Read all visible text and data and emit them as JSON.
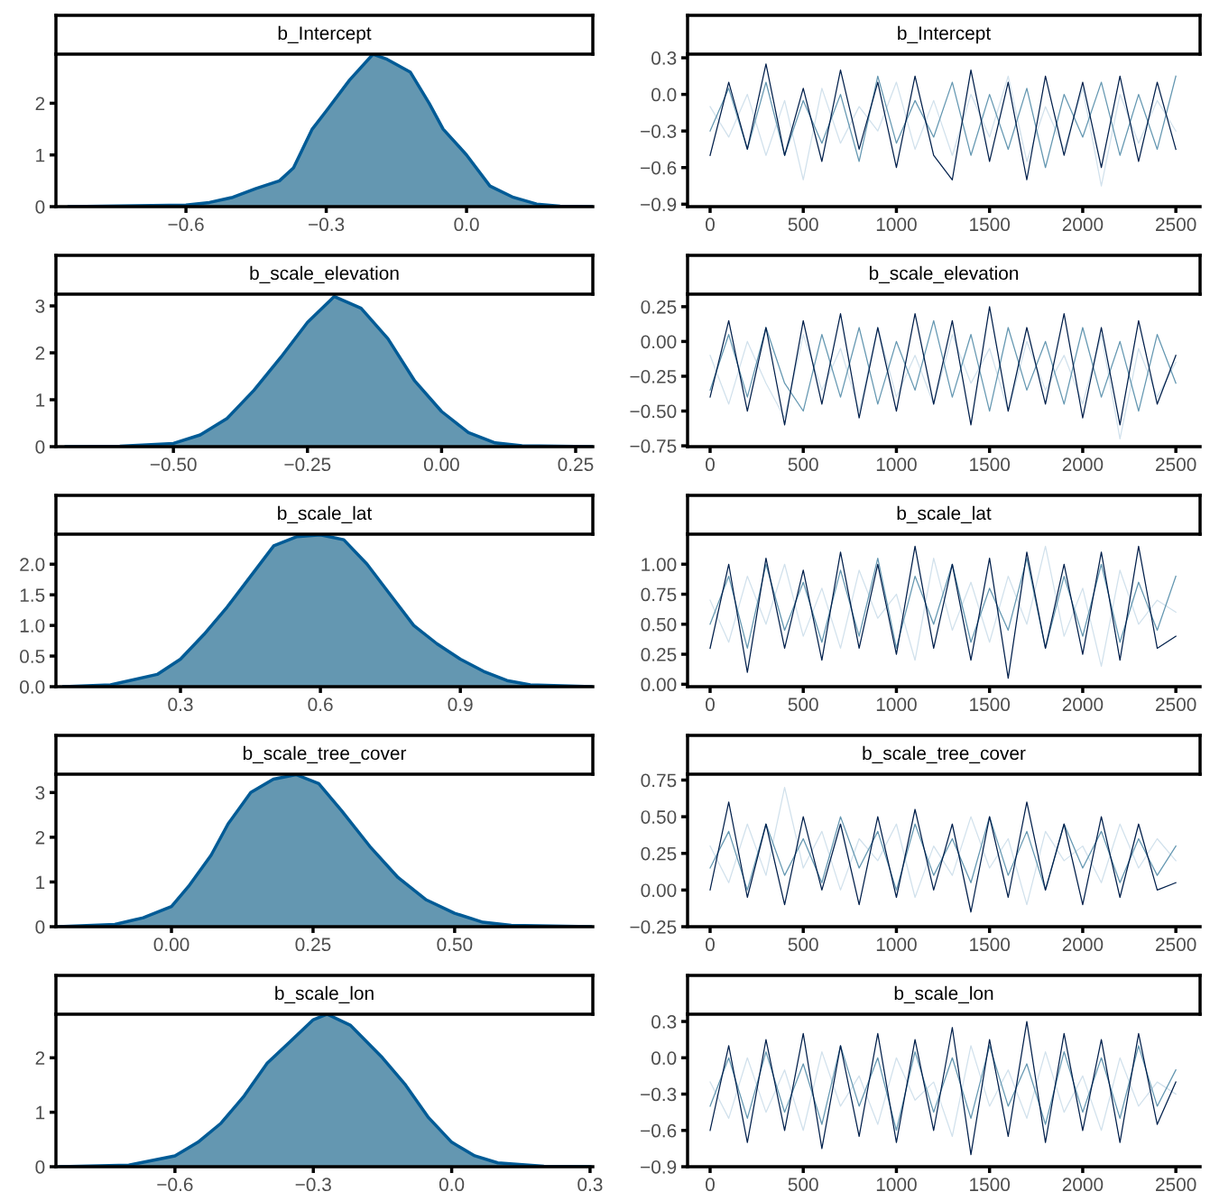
{
  "chart_data": [
    {
      "type": "area",
      "title": "b_Intercept",
      "xlim": [
        -0.878,
        0.27
      ],
      "ylim": [
        0,
        2.95
      ],
      "xticks": [
        {
          "value": -0.6,
          "label": "−0.6"
        },
        {
          "value": -0.3,
          "label": "−0.3"
        },
        {
          "value": 0.0,
          "label": "0.0"
        }
      ],
      "yticks": [
        0,
        1,
        2
      ],
      "x": [
        -0.85,
        -0.6,
        -0.55,
        -0.5,
        -0.45,
        -0.4,
        -0.37,
        -0.33,
        -0.3,
        -0.25,
        -0.2,
        -0.17,
        -0.12,
        -0.08,
        -0.05,
        0.0,
        0.05,
        0.1,
        0.15,
        0.2,
        0.27
      ],
      "series": [
        {
          "color": "#6497b1",
          "values": [
            0.0,
            0.03,
            0.08,
            0.18,
            0.35,
            0.5,
            0.75,
            1.5,
            1.85,
            2.45,
            2.95,
            2.85,
            2.6,
            2.0,
            1.5,
            1.0,
            0.4,
            0.18,
            0.05,
            0.01,
            0.0
          ]
        }
      ]
    },
    {
      "type": "line",
      "title": "b_Intercept",
      "xlim": [
        -121,
        2630
      ],
      "ylim": [
        -0.92,
        0.33
      ],
      "xticks": [
        0,
        500,
        1000,
        1500,
        2000,
        2500
      ],
      "yticks": [
        {
          "value": 0.3,
          "label": "0.3"
        },
        {
          "value": 0.0,
          "label": "0.0"
        },
        {
          "value": -0.3,
          "label": "−0.3"
        },
        {
          "value": -0.6,
          "label": "−0.6"
        },
        {
          "value": -0.9,
          "label": "−0.9"
        }
      ],
      "x": [
        0,
        100,
        200,
        300,
        400,
        500,
        600,
        700,
        800,
        900,
        1000,
        1100,
        1200,
        1300,
        1400,
        1500,
        1600,
        1700,
        1800,
        1900,
        2000,
        2100,
        2200,
        2300,
        2400,
        2500
      ],
      "series": [
        {
          "color": "#d1e1ec",
          "values": [
            -0.1,
            -0.35,
            0.0,
            -0.5,
            -0.05,
            -0.7,
            0.05,
            -0.4,
            -0.1,
            -0.3,
            0.1,
            -0.45,
            -0.05,
            -0.5,
            0.0,
            -0.35,
            0.15,
            -0.55,
            -0.1,
            -0.45,
            0.05,
            -0.75,
            0.0,
            -0.4,
            -0.05,
            -0.3
          ]
        },
        {
          "color": "#6497b1",
          "values": [
            -0.3,
            0.05,
            -0.45,
            0.1,
            -0.5,
            -0.05,
            -0.4,
            0.0,
            -0.55,
            0.15,
            -0.4,
            -0.05,
            -0.35,
            0.1,
            -0.5,
            0.0,
            -0.45,
            0.05,
            -0.6,
            0.0,
            -0.35,
            0.1,
            -0.5,
            0.0,
            -0.45,
            0.15
          ]
        },
        {
          "color": "#011f4b",
          "values": [
            -0.5,
            0.1,
            -0.45,
            0.25,
            -0.5,
            0.05,
            -0.55,
            0.2,
            -0.45,
            0.1,
            -0.6,
            0.15,
            -0.5,
            -0.7,
            0.2,
            -0.55,
            0.1,
            -0.7,
            0.15,
            -0.5,
            0.1,
            -0.6,
            0.15,
            -0.55,
            0.1,
            -0.45
          ]
        }
      ]
    },
    {
      "type": "area",
      "title": "b_scale_elevation",
      "xlim": [
        -0.719,
        0.282
      ],
      "ylim": [
        0,
        3.25
      ],
      "xticks": [
        {
          "value": -0.5,
          "label": "−0.50"
        },
        {
          "value": -0.25,
          "label": "−0.25"
        },
        {
          "value": 0.0,
          "label": "0.00"
        },
        {
          "value": 0.25,
          "label": "0.25"
        }
      ],
      "yticks": [
        0,
        1,
        2,
        3
      ],
      "x": [
        -0.7,
        -0.6,
        -0.5,
        -0.45,
        -0.4,
        -0.35,
        -0.3,
        -0.25,
        -0.2,
        -0.15,
        -0.1,
        -0.05,
        0.0,
        0.05,
        0.1,
        0.15,
        0.28
      ],
      "series": [
        {
          "color": "#6497b1",
          "values": [
            0.0,
            0.01,
            0.07,
            0.25,
            0.6,
            1.2,
            1.9,
            2.65,
            3.2,
            2.95,
            2.3,
            1.4,
            0.75,
            0.3,
            0.08,
            0.02,
            0.0
          ]
        }
      ]
    },
    {
      "type": "line",
      "title": "b_scale_elevation",
      "xlim": [
        -121,
        2630
      ],
      "ylim": [
        -0.756,
        0.34
      ],
      "xticks": [
        0,
        500,
        1000,
        1500,
        2000,
        2500
      ],
      "yticks": [
        {
          "value": 0.25,
          "label": "0.25"
        },
        {
          "value": 0.0,
          "label": "0.00"
        },
        {
          "value": -0.25,
          "label": "−0.25"
        },
        {
          "value": -0.5,
          "label": "−0.50"
        },
        {
          "value": -0.75,
          "label": "−0.75"
        }
      ],
      "x": [
        0,
        100,
        200,
        300,
        400,
        500,
        600,
        700,
        800,
        900,
        1000,
        1100,
        1200,
        1300,
        1400,
        1500,
        1600,
        1700,
        1800,
        1900,
        2000,
        2100,
        2200,
        2300,
        2400,
        2500
      ],
      "series": [
        {
          "color": "#d1e1ec",
          "values": [
            -0.1,
            -0.45,
            0.0,
            -0.3,
            -0.55,
            0.05,
            -0.35,
            -0.05,
            -0.5,
            0.1,
            -0.4,
            -0.1,
            -0.45,
            0.05,
            -0.3,
            -0.05,
            -0.5,
            0.0,
            -0.35,
            -0.1,
            -0.45,
            0.05,
            -0.7,
            -0.05,
            -0.4,
            -0.15
          ]
        },
        {
          "color": "#6497b1",
          "values": [
            -0.35,
            0.05,
            -0.4,
            0.1,
            -0.3,
            -0.5,
            0.05,
            -0.4,
            0.1,
            -0.45,
            0.0,
            -0.35,
            0.15,
            -0.4,
            0.05,
            -0.5,
            0.1,
            -0.35,
            0.0,
            -0.45,
            0.1,
            -0.4,
            0.0,
            -0.5,
            0.05,
            -0.3
          ]
        },
        {
          "color": "#011f4b",
          "values": [
            -0.4,
            0.15,
            -0.5,
            0.1,
            -0.6,
            0.15,
            -0.45,
            0.2,
            -0.55,
            0.1,
            -0.5,
            0.2,
            -0.45,
            0.15,
            -0.6,
            0.25,
            -0.5,
            0.1,
            -0.45,
            0.2,
            -0.55,
            0.1,
            -0.6,
            0.15,
            -0.45,
            -0.1
          ]
        }
      ]
    },
    {
      "type": "area",
      "title": "b_scale_lat",
      "xlim": [
        0.033,
        1.184
      ],
      "ylim": [
        0,
        2.49
      ],
      "xticks": [
        0.3,
        0.6,
        0.9
      ],
      "yticks": [
        {
          "value": 0,
          "label": "0.0"
        },
        {
          "value": 0.5,
          "label": "0.5"
        },
        {
          "value": 1.0,
          "label": "1.0"
        },
        {
          "value": 1.5,
          "label": "1.5"
        },
        {
          "value": 2.0,
          "label": "2.0"
        }
      ],
      "x": [
        0.05,
        0.15,
        0.25,
        0.3,
        0.35,
        0.4,
        0.45,
        0.5,
        0.55,
        0.6,
        0.65,
        0.7,
        0.75,
        0.8,
        0.85,
        0.9,
        0.95,
        1.0,
        1.05,
        1.18
      ],
      "series": [
        {
          "color": "#6497b1",
          "values": [
            0.0,
            0.03,
            0.2,
            0.45,
            0.85,
            1.3,
            1.8,
            2.3,
            2.45,
            2.48,
            2.4,
            2.0,
            1.5,
            1.0,
            0.7,
            0.45,
            0.25,
            0.1,
            0.03,
            0.0
          ]
        }
      ]
    },
    {
      "type": "line",
      "title": "b_scale_lat",
      "xlim": [
        -121,
        2630
      ],
      "ylim": [
        -0.02,
        1.25
      ],
      "xticks": [
        0,
        500,
        1000,
        1500,
        2000,
        2500
      ],
      "yticks": [
        {
          "value": 0.0,
          "label": "0.00"
        },
        {
          "value": 0.25,
          "label": "0.25"
        },
        {
          "value": 0.5,
          "label": "0.50"
        },
        {
          "value": 0.75,
          "label": "0.75"
        },
        {
          "value": 1.0,
          "label": "1.00"
        }
      ],
      "x": [
        0,
        100,
        200,
        300,
        400,
        500,
        600,
        700,
        800,
        900,
        1000,
        1100,
        1200,
        1300,
        1400,
        1500,
        1600,
        1700,
        1800,
        1900,
        2000,
        2100,
        2200,
        2300,
        2400,
        2500
      ],
      "series": [
        {
          "color": "#d1e1ec",
          "values": [
            0.7,
            0.35,
            0.9,
            0.5,
            1.0,
            0.4,
            0.8,
            0.3,
            0.95,
            0.55,
            0.75,
            0.2,
            1.05,
            0.45,
            0.85,
            0.35,
            0.9,
            0.5,
            1.15,
            0.4,
            0.8,
            0.15,
            0.95,
            0.5,
            0.7,
            0.6
          ]
        },
        {
          "color": "#6497b1",
          "values": [
            0.5,
            0.9,
            0.3,
            1.0,
            0.45,
            0.85,
            0.35,
            0.95,
            0.4,
            1.05,
            0.3,
            0.9,
            0.5,
            1.0,
            0.35,
            0.8,
            0.45,
            1.05,
            0.3,
            0.9,
            0.4,
            1.0,
            0.35,
            0.85,
            0.45,
            0.9
          ]
        },
        {
          "color": "#011f4b",
          "values": [
            0.3,
            1.0,
            0.1,
            1.05,
            0.3,
            0.95,
            0.2,
            1.1,
            0.3,
            1.0,
            0.25,
            1.15,
            0.3,
            1.0,
            0.2,
            1.05,
            0.05,
            1.1,
            0.3,
            1.0,
            0.25,
            1.1,
            0.2,
            1.15,
            0.3,
            0.4
          ]
        }
      ]
    },
    {
      "type": "area",
      "title": "b_scale_tree_cover",
      "xlim": [
        -0.204,
        0.744
      ],
      "ylim": [
        0,
        3.41
      ],
      "xticks": [
        {
          "value": 0.0,
          "label": "0.00"
        },
        {
          "value": 0.25,
          "label": "0.25"
        },
        {
          "value": 0.5,
          "label": "0.50"
        }
      ],
      "yticks": [
        0,
        1,
        2,
        3
      ],
      "x": [
        -0.2,
        -0.1,
        -0.05,
        0.0,
        0.03,
        0.07,
        0.1,
        0.14,
        0.18,
        0.22,
        0.26,
        0.3,
        0.35,
        0.4,
        0.45,
        0.5,
        0.55,
        0.6,
        0.74
      ],
      "series": [
        {
          "color": "#6497b1",
          "values": [
            0.0,
            0.05,
            0.2,
            0.45,
            0.9,
            1.6,
            2.3,
            3.0,
            3.3,
            3.4,
            3.2,
            2.6,
            1.8,
            1.1,
            0.6,
            0.3,
            0.1,
            0.03,
            0.0
          ]
        }
      ]
    },
    {
      "type": "line",
      "title": "b_scale_tree_cover",
      "xlim": [
        -121,
        2630
      ],
      "ylim": [
        -0.25,
        0.79
      ],
      "xticks": [
        0,
        500,
        1000,
        1500,
        2000,
        2500
      ],
      "yticks": [
        {
          "value": -0.25,
          "label": "−0.25"
        },
        {
          "value": 0.0,
          "label": "0.00"
        },
        {
          "value": 0.25,
          "label": "0.25"
        },
        {
          "value": 0.5,
          "label": "0.50"
        },
        {
          "value": 0.75,
          "label": "0.75"
        }
      ],
      "x": [
        0,
        100,
        200,
        300,
        400,
        500,
        600,
        700,
        800,
        900,
        1000,
        1100,
        1200,
        1300,
        1400,
        1500,
        1600,
        1700,
        1800,
        1900,
        2000,
        2100,
        2200,
        2300,
        2400,
        2500
      ],
      "series": [
        {
          "color": "#d1e1ec",
          "values": [
            0.3,
            0.05,
            0.45,
            0.1,
            0.7,
            0.15,
            0.4,
            0.0,
            0.35,
            0.2,
            0.45,
            -0.05,
            0.3,
            0.1,
            0.5,
            0.15,
            0.35,
            -0.1,
            0.4,
            0.2,
            0.3,
            0.05,
            0.45,
            0.15,
            0.35,
            0.2
          ]
        },
        {
          "color": "#6497b1",
          "values": [
            0.15,
            0.4,
            0.0,
            0.45,
            0.1,
            0.35,
            0.05,
            0.5,
            0.15,
            0.4,
            0.0,
            0.45,
            0.1,
            0.35,
            0.05,
            0.5,
            0.1,
            0.4,
            0.0,
            0.45,
            0.15,
            0.4,
            0.05,
            0.35,
            0.1,
            0.3
          ]
        },
        {
          "color": "#011f4b",
          "values": [
            0.0,
            0.6,
            -0.05,
            0.45,
            -0.1,
            0.5,
            0.0,
            0.45,
            -0.1,
            0.5,
            -0.05,
            0.55,
            0.0,
            0.45,
            -0.15,
            0.5,
            -0.05,
            0.6,
            0.0,
            0.45,
            -0.1,
            0.5,
            -0.05,
            0.45,
            0.0,
            0.05
          ]
        }
      ]
    },
    {
      "type": "area",
      "title": "b_scale_lon",
      "xlim": [
        -0.858,
        0.306
      ],
      "ylim": [
        0,
        2.8
      ],
      "xticks": [
        {
          "value": -0.6,
          "label": "−0.6"
        },
        {
          "value": -0.3,
          "label": "−0.3"
        },
        {
          "value": 0.0,
          "label": "0.0"
        },
        {
          "value": 0.3,
          "label": "0.3"
        }
      ],
      "yticks": [
        0,
        1,
        2
      ],
      "x": [
        -0.85,
        -0.7,
        -0.6,
        -0.55,
        -0.5,
        -0.45,
        -0.4,
        -0.35,
        -0.3,
        -0.27,
        -0.22,
        -0.15,
        -0.1,
        -0.05,
        0.0,
        0.05,
        0.1,
        0.2,
        0.3
      ],
      "series": [
        {
          "color": "#6497b1",
          "values": [
            0.0,
            0.03,
            0.2,
            0.45,
            0.8,
            1.3,
            1.9,
            2.3,
            2.7,
            2.8,
            2.6,
            2.0,
            1.5,
            0.9,
            0.45,
            0.2,
            0.07,
            0.01,
            0.0
          ]
        }
      ]
    },
    {
      "type": "line",
      "title": "b_scale_lon",
      "xlim": [
        -121,
        2630
      ],
      "ylim": [
        -0.9,
        0.36
      ],
      "xticks": [
        0,
        500,
        1000,
        1500,
        2000,
        2500
      ],
      "yticks": [
        {
          "value": 0.3,
          "label": "0.3"
        },
        {
          "value": 0.0,
          "label": "0.0"
        },
        {
          "value": -0.3,
          "label": "−0.3"
        },
        {
          "value": -0.6,
          "label": "−0.6"
        },
        {
          "value": -0.9,
          "label": "−0.9"
        }
      ],
      "x": [
        0,
        100,
        200,
        300,
        400,
        500,
        600,
        700,
        800,
        900,
        1000,
        1100,
        1200,
        1300,
        1400,
        1500,
        1600,
        1700,
        1800,
        1900,
        2000,
        2100,
        2200,
        2300,
        2400,
        2500
      ],
      "series": [
        {
          "color": "#d1e1ec",
          "values": [
            -0.2,
            -0.5,
            0.0,
            -0.45,
            -0.1,
            -0.6,
            0.05,
            -0.4,
            -0.15,
            -0.55,
            0.0,
            -0.35,
            -0.2,
            -0.65,
            0.1,
            -0.4,
            -0.1,
            -0.5,
            0.05,
            -0.45,
            -0.15,
            -0.6,
            0.0,
            -0.4,
            -0.2,
            -0.3
          ]
        },
        {
          "color": "#6497b1",
          "values": [
            -0.4,
            0.0,
            -0.5,
            0.05,
            -0.45,
            -0.05,
            -0.55,
            0.1,
            -0.4,
            0.0,
            -0.6,
            0.05,
            -0.45,
            0.0,
            -0.5,
            0.1,
            -0.4,
            -0.05,
            -0.55,
            0.05,
            -0.45,
            0.0,
            -0.5,
            0.1,
            -0.4,
            -0.1
          ]
        },
        {
          "color": "#011f4b",
          "values": [
            -0.6,
            0.1,
            -0.7,
            0.15,
            -0.6,
            0.2,
            -0.75,
            0.1,
            -0.65,
            0.2,
            -0.7,
            0.15,
            -0.6,
            0.25,
            -0.8,
            0.15,
            -0.65,
            0.3,
            -0.7,
            0.2,
            -0.6,
            0.15,
            -0.7,
            0.2,
            -0.55,
            -0.2
          ]
        }
      ]
    }
  ]
}
